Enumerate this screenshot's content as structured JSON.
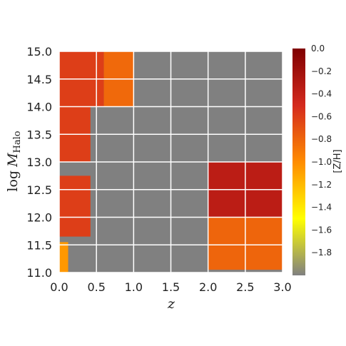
{
  "chart_data": {
    "type": "heatmap",
    "xlabel": "z",
    "ylabel": "log M_Halo",
    "ylabel_main": "log",
    "ylabel_M": "M",
    "ylabel_sub": "Halo",
    "xlim": [
      0.0,
      3.0
    ],
    "ylim": [
      11.0,
      15.0
    ],
    "xticks": [
      "0.0",
      "0.5",
      "1.0",
      "1.5",
      "2.0",
      "2.5",
      "3.0"
    ],
    "yticks": [
      "11.0",
      "11.5",
      "12.0",
      "12.5",
      "13.0",
      "13.5",
      "14.0",
      "14.5",
      "15.0"
    ],
    "background_color": "#808080",
    "grid": true,
    "colorbar": {
      "label": "[Z/H]",
      "range": [
        -2.0,
        0.0
      ],
      "ticks": [
        "0.0",
        "−0.2",
        "−0.4",
        "−0.6",
        "−0.8",
        "−1.0",
        "−1.2",
        "−1.4",
        "−1.6",
        "−1.8"
      ],
      "colormap": "hot_r",
      "colors": [
        "#808080",
        "#ffff00",
        "#ff8c00",
        "#d42a1e",
        "#7f0000"
      ]
    },
    "cells": [
      {
        "x0": 0.0,
        "x1": 0.6,
        "y0": 14.0,
        "y1": 15.0,
        "value": -0.6
      },
      {
        "x0": 0.6,
        "x1": 1.0,
        "y0": 14.0,
        "y1": 15.0,
        "value": -0.82
      },
      {
        "x0": 0.0,
        "x1": 0.42,
        "y0": 13.0,
        "y1": 14.0,
        "value": -0.6
      },
      {
        "x0": 0.0,
        "x1": 0.42,
        "y0": 11.65,
        "y1": 12.75,
        "value": -0.6
      },
      {
        "x0": 0.0,
        "x1": 0.12,
        "y0": 11.0,
        "y1": 11.55,
        "value": -1.05
      },
      {
        "x0": 2.0,
        "x1": 3.0,
        "y0": 12.0,
        "y1": 13.0,
        "value": -0.35
      },
      {
        "x0": 2.0,
        "x1": 3.0,
        "y0": 11.05,
        "y1": 12.0,
        "value": -0.8
      }
    ]
  }
}
